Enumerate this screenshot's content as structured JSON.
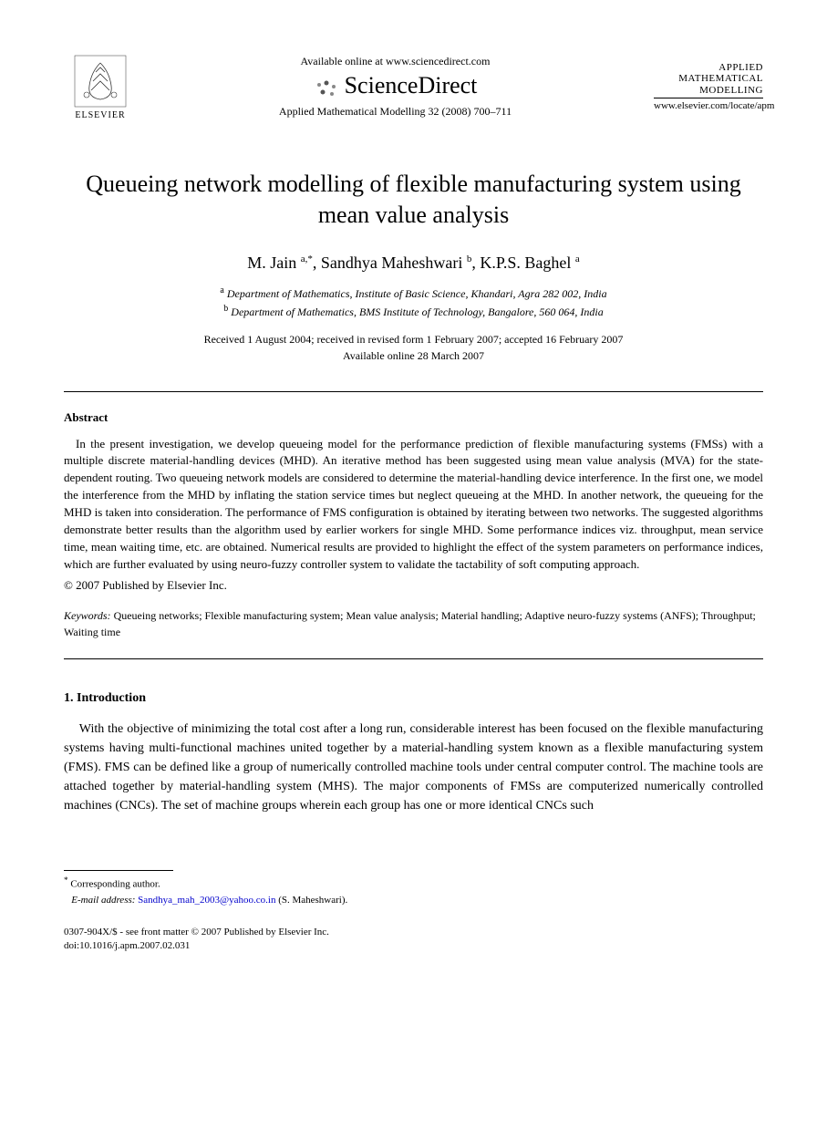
{
  "header": {
    "elsevier_label": "ELSEVIER",
    "available_online": "Available online at www.sciencedirect.com",
    "sciencedirect_label": "ScienceDirect",
    "journal_reference": "Applied Mathematical Modelling 32 (2008) 700–711",
    "journal_logo_lines": [
      "APPLIED",
      "MATHEMATICAL",
      "MODELLING"
    ],
    "journal_url": "www.elsevier.com/locate/apm"
  },
  "title": "Queueing network modelling of flexible manufacturing system using mean value analysis",
  "authors_html": "M. Jain <sup>a,*</sup>, Sandhya Maheshwari <sup>b</sup>, K.P.S. Baghel <sup>a</sup>",
  "affiliations": [
    {
      "sup": "a",
      "text": "Department of Mathematics, Institute of Basic Science, Khandari, Agra 282 002, India"
    },
    {
      "sup": "b",
      "text": "Department of Mathematics, BMS Institute of Technology, Bangalore, 560 064, India"
    }
  ],
  "dates": {
    "line1": "Received 1 August 2004; received in revised form 1 February 2007; accepted 16 February 2007",
    "line2": "Available online 28 March 2007"
  },
  "abstract": {
    "heading": "Abstract",
    "body": "In the present investigation, we develop queueing model for the performance prediction of flexible manufacturing systems (FMSs) with a multiple discrete material-handling devices (MHD). An iterative method has been suggested using mean value analysis (MVA) for the state-dependent routing. Two queueing network models are considered to determine the material-handling device interference. In the first one, we model the interference from the MHD by inflating the station service times but neglect queueing at the MHD. In another network, the queueing for the MHD is taken into consideration. The performance of FMS configuration is obtained by iterating between two networks. The suggested algorithms demonstrate better results than the algorithm used by earlier workers for single MHD. Some performance indices viz. throughput, mean service time, mean waiting time, etc. are obtained. Numerical results are provided to highlight the effect of the system parameters on performance indices, which are further evaluated by using neuro-fuzzy controller system to validate the tactability of soft computing approach.",
    "copyright": "© 2007 Published by Elsevier Inc."
  },
  "keywords": {
    "label": "Keywords:",
    "text": "Queueing networks; Flexible manufacturing system; Mean value analysis; Material handling; Adaptive neuro-fuzzy systems (ANFS); Throughput; Waiting time"
  },
  "section1": {
    "heading": "1. Introduction",
    "body": "With the objective of minimizing the total cost after a long run, considerable interest has been focused on the flexible manufacturing systems having multi-functional machines united together by a material-handling system known as a flexible manufacturing system (FMS). FMS can be defined like a group of numerically controlled machine tools under central computer control. The machine tools are attached together by material-handling system (MHS). The major components of FMSs are computerized numerically controlled machines (CNCs). The set of machine groups wherein each group has one or more identical CNCs such"
  },
  "footnote": {
    "corresponding": "Corresponding author.",
    "email_label": "E-mail address:",
    "email": "Sandhya_mah_2003@yahoo.co.in",
    "email_attrib": "(S. Maheshwari)."
  },
  "footer": {
    "line1": "0307-904X/$ - see front matter © 2007 Published by Elsevier Inc.",
    "line2": "doi:10.1016/j.apm.2007.02.031"
  }
}
